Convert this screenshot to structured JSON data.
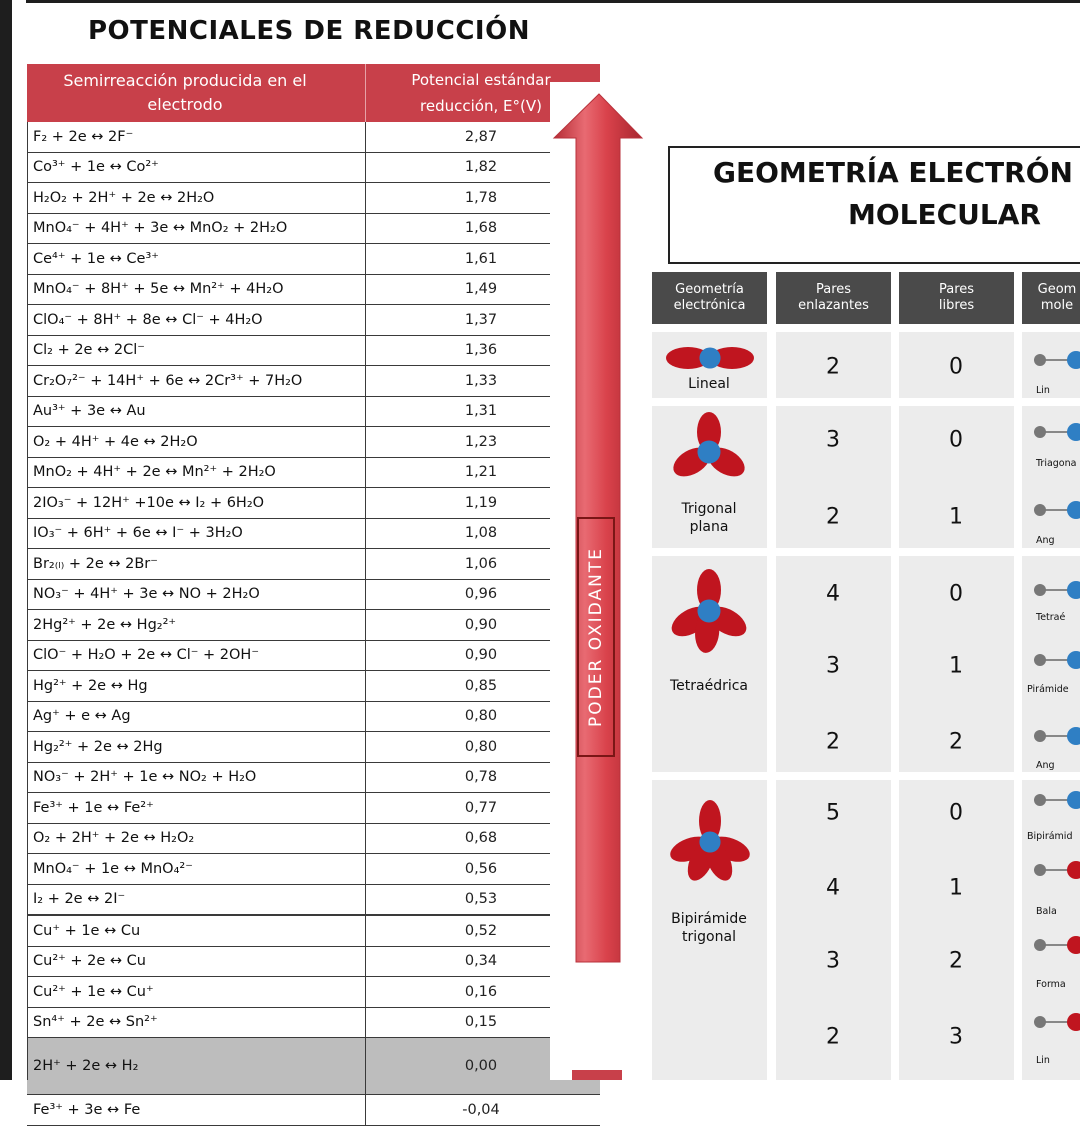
{
  "left_title": "POTENCIALES DE REDUCCIÓN",
  "table_headers": {
    "col1_line1": "Semirreacción producida en el",
    "col1_line2": "electrodo",
    "col2_line1": "Potencial estándar",
    "col2_line2": "reducción, E°(V)"
  },
  "reactions": [
    {
      "eq": "F₂ + 2e ↔ 2F⁻",
      "value": "2,87"
    },
    {
      "eq": "Co³⁺ + 1e ↔ Co²⁺",
      "value": "1,82"
    },
    {
      "eq": "H₂O₂ + 2H⁺ + 2e ↔ 2H₂O",
      "value": "1,78"
    },
    {
      "eq": "MnO₄⁻ + 4H⁺ + 3e ↔ MnO₂ + 2H₂O",
      "value": "1,68"
    },
    {
      "eq": "Ce⁴⁺ + 1e ↔ Ce³⁺",
      "value": "1,61"
    },
    {
      "eq": "MnO₄⁻ + 8H⁺ + 5e ↔ Mn²⁺ + 4H₂O",
      "value": "1,49"
    },
    {
      "eq": "ClO₄⁻ + 8H⁺ + 8e ↔ Cl⁻ + 4H₂O",
      "value": "1,37"
    },
    {
      "eq": "Cl₂ + 2e ↔ 2Cl⁻",
      "value": "1,36"
    },
    {
      "eq": "Cr₂O₇²⁻ + 14H⁺ + 6e ↔ 2Cr³⁺ + 7H₂O",
      "value": "1,33"
    },
    {
      "eq": "Au³⁺ + 3e ↔ Au",
      "value": "1,31"
    },
    {
      "eq": "O₂ + 4H⁺ + 4e ↔ 2H₂O",
      "value": "1,23"
    },
    {
      "eq": "MnO₂ + 4H⁺ + 2e ↔ Mn²⁺ + 2H₂O",
      "value": "1,21"
    },
    {
      "eq": "2IO₃⁻ + 12H⁺ +10e ↔ I₂ + 6H₂O",
      "value": "1,19"
    },
    {
      "eq": "IO₃⁻ + 6H⁺ + 6e ↔ I⁻ + 3H₂O",
      "value": "1,08"
    },
    {
      "eq": "Br₂₍ₗ₎ + 2e ↔ 2Br⁻",
      "value": "1,06"
    },
    {
      "eq": "NO₃⁻ + 4H⁺ + 3e ↔ NO + 2H₂O",
      "value": "0,96"
    },
    {
      "eq": "2Hg²⁺ + 2e ↔ Hg₂²⁺",
      "value": "0,90"
    },
    {
      "eq": "ClO⁻ + H₂O + 2e ↔ Cl⁻ + 2OH⁻",
      "value": "0,90"
    },
    {
      "eq": "Hg²⁺ + 2e ↔ Hg",
      "value": "0,85"
    },
    {
      "eq": "Ag⁺ + e ↔ Ag",
      "value": "0,80"
    },
    {
      "eq": "Hg₂²⁺ + 2e ↔ 2Hg",
      "value": "0,80"
    },
    {
      "eq": "NO₃⁻ + 2H⁺ + 1e ↔ NO₂ + H₂O",
      "value": "0,78"
    },
    {
      "eq": "Fe³⁺ + 1e ↔ Fe²⁺",
      "value": "0,77"
    },
    {
      "eq": "O₂ + 2H⁺ + 2e ↔ H₂O₂",
      "value": "0,68"
    },
    {
      "eq": "MnO₄⁻ + 1e ↔ MnO₄²⁻",
      "value": "0,56"
    },
    {
      "eq": "I₂ + 2e ↔ 2I⁻",
      "value": "0,53"
    },
    {
      "eq": "Cu⁺ + 1e ↔ Cu",
      "value": "0,52"
    },
    {
      "eq": "Cu²⁺ + 2e ↔ Cu",
      "value": "0,34"
    },
    {
      "eq": "Cu²⁺ + 1e ↔ Cu⁺",
      "value": "0,16"
    },
    {
      "eq": "Sn⁴⁺ + 2e ↔ Sn²⁺",
      "value": "0,15"
    },
    {
      "eq": "2H⁺ + 2e ↔ H₂",
      "value": "0,00",
      "highlight": true
    },
    {
      "eq": "Fe³⁺ + 3e ↔ Fe",
      "value": "-0,04"
    }
  ],
  "arrow_label": "PODER OXIDANTE",
  "right_title_line1": "GEOMETRÍA ELECTRÓN",
  "right_title_line2": "MOLECULAR",
  "geometry_headers": [
    {
      "line1": "Geometría",
      "line2": "electrónica"
    },
    {
      "line1": "Pares",
      "line2": "enlazantes"
    },
    {
      "line1": "Pares",
      "line2": "libres"
    },
    {
      "line1": "Geom",
      "line2": "mole"
    }
  ],
  "geometry_groups": [
    {
      "name_line1": "Lineal",
      "name_line2": ""
    },
    {
      "name_line1": "Trigonal",
      "name_line2": "plana"
    },
    {
      "name_line1": "Tetraédrica",
      "name_line2": ""
    },
    {
      "name_line1": "Bipirámide",
      "name_line2": "trigonal"
    }
  ],
  "geometry_rows": [
    {
      "bonding": "2",
      "lone": "0",
      "molecular": "Lin"
    },
    {
      "bonding": "3",
      "lone": "0",
      "molecular": "Triagona"
    },
    {
      "bonding": "2",
      "lone": "1",
      "molecular": "Ang"
    },
    {
      "bonding": "4",
      "lone": "0",
      "molecular": "Tetraé"
    },
    {
      "bonding": "3",
      "lone": "1",
      "molecular": "Pirámide"
    },
    {
      "bonding": "2",
      "lone": "2",
      "molecular": "Ang"
    },
    {
      "bonding": "5",
      "lone": "0",
      "molecular": "Bipirámid"
    },
    {
      "bonding": "4",
      "lone": "1",
      "molecular": "Bala"
    },
    {
      "bonding": "3",
      "lone": "2",
      "molecular": "Forma"
    },
    {
      "bonding": "2",
      "lone": "3",
      "molecular": "Lin"
    }
  ],
  "colors": {
    "header_red": "#c8404a",
    "arrow_red": "#d9424b",
    "grey_header": "#4a4a4a",
    "atom_blue": "#2f7fc4",
    "lobe_red": "#c0151f"
  }
}
